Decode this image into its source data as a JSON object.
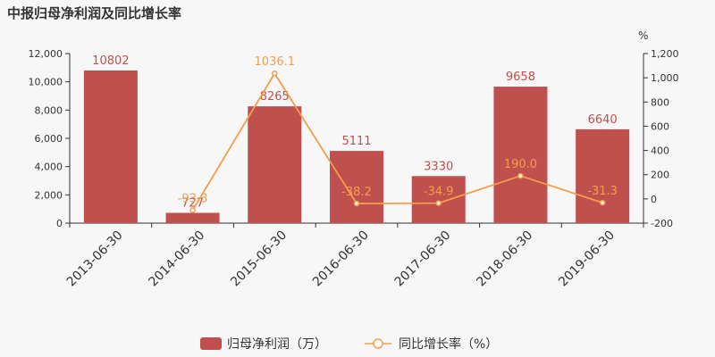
{
  "chart_data": {
    "title": "中报归母净利润及同比增长率",
    "categories": [
      "2013-06-30",
      "2014-06-30",
      "2015-06-30",
      "2016-06-30",
      "2017-06-30",
      "2018-06-30",
      "2019-06-30"
    ],
    "series": [
      {
        "name": "归母净利润（万）",
        "type": "bar",
        "axis": "left",
        "color": "#c0504d",
        "values": [
          10802,
          727,
          8265,
          5111,
          3330,
          9658,
          6640
        ],
        "labels": [
          "10802",
          "727",
          "8265",
          "5111",
          "3330",
          "9658",
          "6640"
        ]
      },
      {
        "name": "同比增长率（%）",
        "type": "line",
        "axis": "right",
        "color": "#f59d4b",
        "values": [
          null,
          -93.3,
          1036.1,
          -38.2,
          -34.9,
          190.0,
          -31.3
        ],
        "labels": [
          "",
          "-93.3",
          "1036.1",
          "-38.2",
          "-34.9",
          "190.0",
          "-31.3"
        ]
      }
    ],
    "left_axis": {
      "ylim": [
        0,
        12000
      ],
      "ticks": [
        0,
        2000,
        4000,
        6000,
        8000,
        10000,
        12000
      ],
      "tick_labels": [
        "0",
        "2,000",
        "4,000",
        "6,000",
        "8,000",
        "10,000",
        "12,000"
      ]
    },
    "right_axis": {
      "unit": "%",
      "ylim": [
        -200,
        1200
      ],
      "ticks": [
        -200,
        0,
        200,
        400,
        600,
        800,
        1000,
        1200
      ],
      "tick_labels": [
        "-200",
        "0",
        "200",
        "400",
        "600",
        "800",
        "1,000",
        "1,200"
      ]
    },
    "grid": false,
    "legend_position": "bottom-center"
  }
}
